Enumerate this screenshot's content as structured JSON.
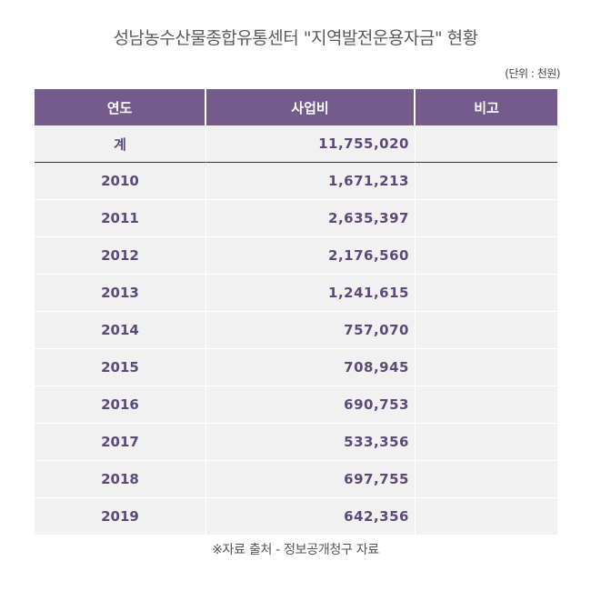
{
  "title": "성남농수산물종합유통센터 \"지역발전운용자금\" 현황",
  "unit": "(단위 : 천원)",
  "columns": [
    "연도",
    "사업비",
    "비고"
  ],
  "total": {
    "label": "계",
    "amount": "11,755,020",
    "note": ""
  },
  "rows": [
    {
      "year": "2010",
      "amount": "1,671,213",
      "note": ""
    },
    {
      "year": "2011",
      "amount": "2,635,397",
      "note": ""
    },
    {
      "year": "2012",
      "amount": "2,176,560",
      "note": ""
    },
    {
      "year": "2013",
      "amount": "1,241,615",
      "note": ""
    },
    {
      "year": "2014",
      "amount": "757,070",
      "note": ""
    },
    {
      "year": "2015",
      "amount": "708,945",
      "note": ""
    },
    {
      "year": "2016",
      "amount": "690,753",
      "note": ""
    },
    {
      "year": "2017",
      "amount": "533,356",
      "note": ""
    },
    {
      "year": "2018",
      "amount": "697,755",
      "note": ""
    },
    {
      "year": "2019",
      "amount": "642,356",
      "note": ""
    }
  ],
  "source": "※자료 출처 - 정보공개청구 자료"
}
